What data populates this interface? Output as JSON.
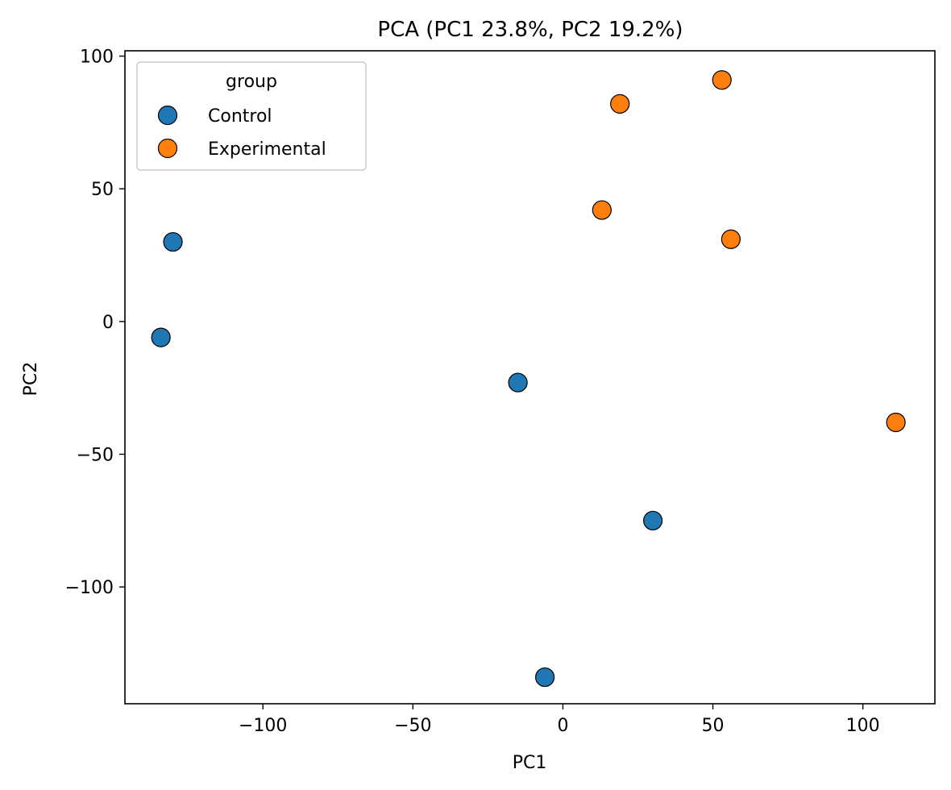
{
  "chart_data": {
    "type": "scatter",
    "title": "PCA (PC1 23.8%, PC2 19.2%)",
    "xlabel": "PC1",
    "ylabel": "PC2",
    "xlim": [
      -146,
      124
    ],
    "ylim": [
      -144,
      102
    ],
    "xticks": [
      -100,
      -50,
      0,
      50,
      100
    ],
    "xtick_labels": [
      "−100",
      "−50",
      "0",
      "50",
      "100"
    ],
    "yticks": [
      -100,
      -50,
      0,
      50,
      100
    ],
    "ytick_labels": [
      "−100",
      "−50",
      "0",
      "50",
      "100"
    ],
    "grid": false,
    "legend": {
      "title": "group",
      "placement": "top-left"
    },
    "series": [
      {
        "name": "Control",
        "color": "#1f77b4",
        "points": [
          {
            "x": -130,
            "y": 30
          },
          {
            "x": -134,
            "y": -6
          },
          {
            "x": -15,
            "y": -23
          },
          {
            "x": 30,
            "y": -75
          },
          {
            "x": -6,
            "y": -134
          }
        ]
      },
      {
        "name": "Experimental",
        "color": "#ff7f0e",
        "points": [
          {
            "x": 53,
            "y": 91
          },
          {
            "x": 19,
            "y": 82
          },
          {
            "x": 13,
            "y": 42
          },
          {
            "x": 56,
            "y": 31
          },
          {
            "x": 111,
            "y": -38
          }
        ]
      }
    ]
  }
}
